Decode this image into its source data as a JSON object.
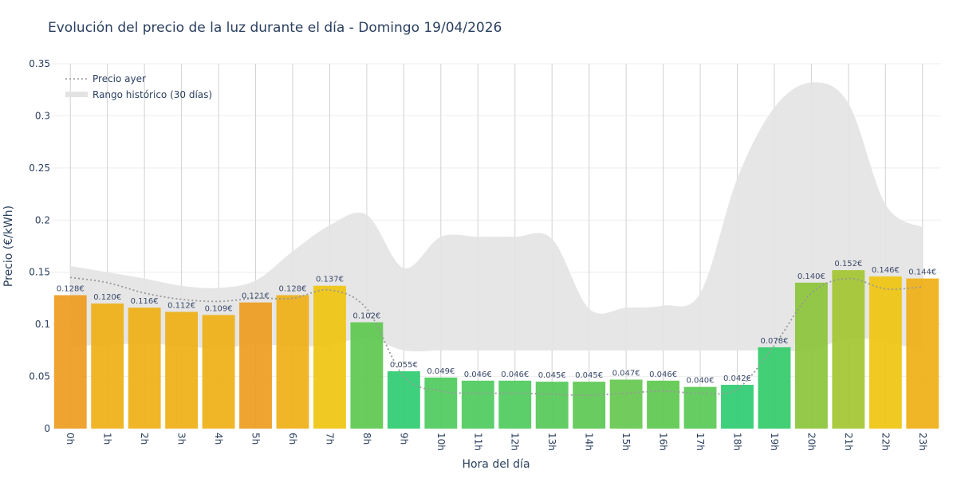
{
  "chart_data": {
    "type": "bar",
    "title": "Evolución del precio de la luz durante el día - Domingo 19/04/2026",
    "xlabel": "Hora del día",
    "ylabel": "Precio (€/kWh)",
    "ylim": [
      0,
      0.35
    ],
    "yticks": [
      {
        "value": 0,
        "label": "0"
      },
      {
        "value": 0.05,
        "label": "0.05"
      },
      {
        "value": 0.1,
        "label": "0.1"
      },
      {
        "value": 0.15,
        "label": "0.15"
      },
      {
        "value": 0.2,
        "label": "0.2"
      },
      {
        "value": 0.25,
        "label": "0.25"
      },
      {
        "value": 0.3,
        "label": "0.3"
      },
      {
        "value": 0.35,
        "label": "0.35"
      }
    ],
    "grid": true,
    "legend_position": "top-left",
    "categories": [
      "0h",
      "1h",
      "2h",
      "3h",
      "4h",
      "5h",
      "6h",
      "7h",
      "8h",
      "9h",
      "10h",
      "11h",
      "12h",
      "13h",
      "14h",
      "15h",
      "16h",
      "17h",
      "18h",
      "19h",
      "20h",
      "21h",
      "22h",
      "23h"
    ],
    "values": [
      0.128,
      0.12,
      0.116,
      0.112,
      0.109,
      0.121,
      0.128,
      0.137,
      0.102,
      0.055,
      0.049,
      0.046,
      0.046,
      0.045,
      0.045,
      0.047,
      0.046,
      0.04,
      0.042,
      0.078,
      0.14,
      0.152,
      0.146,
      0.144
    ],
    "value_labels": [
      "0.128€",
      "0.120€",
      "0.116€",
      "0.112€",
      "0.109€",
      "0.121€",
      "0.128€",
      "0.137€",
      "0.102€",
      "0.055€",
      "0.049€",
      "0.046€",
      "0.046€",
      "0.045€",
      "0.045€",
      "0.047€",
      "0.046€",
      "0.040€",
      "0.042€",
      "0.078€",
      "0.140€",
      "0.152€",
      "0.146€",
      "0.144€"
    ],
    "bar_colors": [
      "#ee9b20",
      "#efb016",
      "#efb016",
      "#efb016",
      "#efb016",
      "#ee9b20",
      "#efb016",
      "#efc410",
      "#5ec850",
      "#2ecc71",
      "#4ecb5e",
      "#4ecb5e",
      "#4ecb5e",
      "#55c957",
      "#5cc854",
      "#65c84f",
      "#5ec850",
      "#58c955",
      "#2ecc71",
      "#32cb6a",
      "#8cc43a",
      "#a3c631",
      "#efc410",
      "#efb016"
    ],
    "series": [
      {
        "name": "Precio ayer",
        "style": "dotted-line",
        "color": "#999999",
        "values": [
          0.145,
          0.14,
          0.13,
          0.124,
          0.122,
          0.125,
          0.125,
          0.133,
          0.115,
          0.05,
          0.036,
          0.034,
          0.034,
          0.033,
          0.032,
          0.034,
          0.036,
          0.034,
          0.038,
          0.08,
          0.13,
          0.144,
          0.134,
          0.136
        ]
      },
      {
        "name": "Rango histórico (30 días)",
        "style": "band",
        "color": "#e3e3e3",
        "upper": [
          0.156,
          0.15,
          0.144,
          0.137,
          0.135,
          0.142,
          0.17,
          0.195,
          0.205,
          0.154,
          0.184,
          0.184,
          0.184,
          0.182,
          0.115,
          0.116,
          0.118,
          0.13,
          0.24,
          0.308,
          0.332,
          0.312,
          0.215,
          0.193
        ],
        "lower": [
          0.08,
          0.08,
          0.082,
          0.079,
          0.077,
          0.081,
          0.079,
          0.08,
          0.087,
          0.075,
          0.075,
          0.075,
          0.075,
          0.075,
          0.075,
          0.075,
          0.075,
          0.075,
          0.075,
          0.075,
          0.075,
          0.087,
          0.083,
          0.075
        ]
      }
    ]
  },
  "colors": {
    "text": "#2a3f5f",
    "grid": "#eeeeee",
    "vgrid": "#d2d2d2"
  }
}
